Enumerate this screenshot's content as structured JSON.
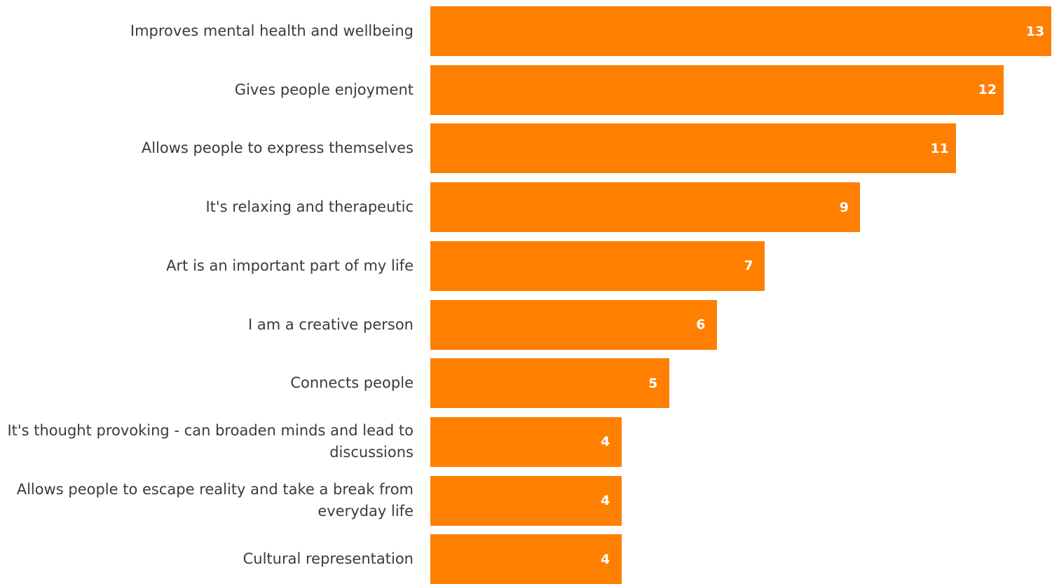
{
  "chart_data": {
    "type": "bar",
    "orientation": "horizontal",
    "categories": [
      "Improves mental health and wellbeing",
      "Gives people enjoyment",
      "Allows people to express themselves",
      "It's relaxing and therapeutic",
      "Art is an important part of my life",
      "I am a creative person",
      "Connects people",
      "It's thought provoking - can broaden minds and lead to discussions",
      "Allows people to escape reality and take a break from everyday life",
      "Cultural representation"
    ],
    "values": [
      13,
      12,
      11,
      9,
      7,
      6,
      5,
      4,
      4,
      4
    ],
    "xlim": [
      0,
      13
    ],
    "title": "",
    "xlabel": "",
    "ylabel": "",
    "grid": false,
    "legend": "none",
    "bar_color": "#ff7f00",
    "value_label_color": "#ffffff",
    "category_label_color": "#3b3b3b"
  }
}
